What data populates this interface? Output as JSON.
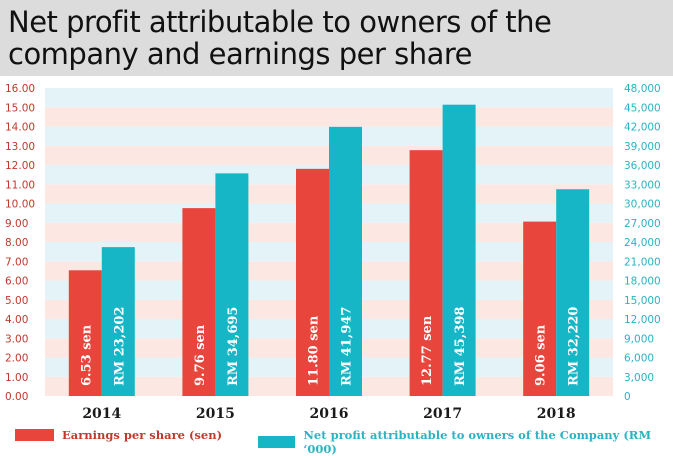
{
  "title": "Net profit attributable to owners of the company and earnings per share",
  "colors": {
    "eps": "#e8453c",
    "net_profit": "#16b6c6",
    "band_pink": "#fde7e3",
    "band_blue": "#e4f3f7",
    "left_axis_text": "#c0392b",
    "right_axis_text": "#2ab3c2",
    "title_background": "#dcdcdc"
  },
  "chart_data": {
    "type": "bar",
    "categories": [
      "2014",
      "2015",
      "2016",
      "2017",
      "2018"
    ],
    "series": [
      {
        "name": "Earnings per share (sen)",
        "axis": "left",
        "values": [
          6.53,
          9.76,
          11.8,
          12.77,
          9.06
        ],
        "labels": [
          "6.53 sen",
          "9.76 sen",
          "11.80 sen",
          "12.77 sen",
          "9.06 sen"
        ]
      },
      {
        "name": "Net profit attributable to owners of the Company (RM '000)",
        "axis": "right",
        "values": [
          23202,
          34695,
          41947,
          45398,
          32220
        ],
        "labels": [
          "RM 23,202",
          "RM 34,695",
          "RM 41,947",
          "RM 45,398",
          "RM 32,220"
        ]
      }
    ],
    "y_left": {
      "range": [
        0,
        16
      ],
      "ticks": [
        "0.00",
        "1.00",
        "2.00",
        "3.00",
        "4.00",
        "5.00",
        "6.00",
        "7.00",
        "8.00",
        "9.00",
        "10.00",
        "11.00",
        "12.00",
        "13.00",
        "14.00",
        "15.00",
        "16.00"
      ]
    },
    "y_right": {
      "range": [
        0,
        48000
      ],
      "ticks": [
        "0",
        "3,000",
        "6,000",
        "9,000",
        "12,000",
        "15,000",
        "18,000",
        "21,000",
        "24,000",
        "27,000",
        "30,000",
        "33,000",
        "36,000",
        "39,000",
        "42,000",
        "45,000",
        "48,000"
      ]
    },
    "legend_position": "bottom",
    "grid": "alternating horizontal bands"
  },
  "legend": {
    "eps_label": "Earnings per share (sen)",
    "net_profit_label": "Net profit attributable to owners of the Company (RM ‘000)"
  }
}
